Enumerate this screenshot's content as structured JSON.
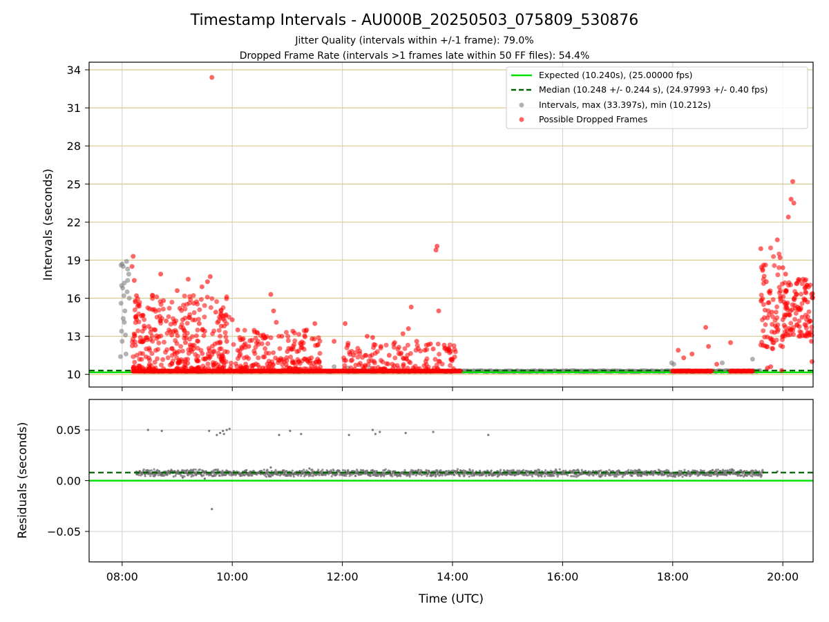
{
  "chart_data": [
    {
      "type": "scatter",
      "title": "Timestamp Intervals - AU000B_20250503_075809_530876",
      "subtitle_lines": [
        "Jitter Quality (intervals within +/-1 frame): 79.0%",
        "Dropped Frame Rate (intervals >1 frames late within 50 FF files): 54.4%"
      ],
      "xlabel": "",
      "ylabel": "Intervals (seconds)",
      "xlim_hours": [
        7.4,
        20.55
      ],
      "ylim": [
        9.0,
        34.6
      ],
      "yticks": [
        10,
        13,
        16,
        19,
        22,
        25,
        28,
        31,
        34
      ],
      "ytick_labels": [
        "10",
        "13",
        "16",
        "19",
        "22",
        "25",
        "28",
        "31",
        "34"
      ],
      "xticks_hours": [
        8,
        10,
        12,
        14,
        16,
        18,
        20
      ],
      "grid": true,
      "legend_position": "upper-right",
      "reference_lines": [
        {
          "name": "Expected (10.240s), (25.00000 fps)",
          "y": 10.24,
          "color": "#00e000",
          "style": "solid"
        },
        {
          "name": "Median (10.248 +/- 0.244 s), (24.97993 +/- 0.40 fps)",
          "y": 10.248,
          "color": "#006400",
          "style": "dashed"
        }
      ],
      "series": [
        {
          "name": "Intervals, max (33.397s), min (10.212s)",
          "color": "#808080",
          "points": [
            [
              7.98,
              18.6
            ],
            [
              8.0,
              18.7
            ],
            [
              8.02,
              18.5
            ],
            [
              8.04,
              17.2
            ],
            [
              7.99,
              17.0
            ],
            [
              8.01,
              16.8
            ],
            [
              8.03,
              16.2
            ],
            [
              7.98,
              15.6
            ],
            [
              8.05,
              15.0
            ],
            [
              8.02,
              14.4
            ],
            [
              8.04,
              14.1
            ],
            [
              7.99,
              13.4
            ],
            [
              8.06,
              13.1
            ],
            [
              8.0,
              12.6
            ],
            [
              8.08,
              18.9
            ],
            [
              8.1,
              18.3
            ],
            [
              8.12,
              17.9
            ],
            [
              8.1,
              17.4
            ],
            [
              8.09,
              16.5
            ],
            [
              8.13,
              16.0
            ],
            [
              7.97,
              11.4
            ],
            [
              8.07,
              11.6
            ],
            [
              11.85,
              10.6
            ],
            [
              12.1,
              10.5
            ],
            [
              12.5,
              10.5
            ],
            [
              17.98,
              10.9
            ],
            [
              18.02,
              10.8
            ],
            [
              18.9,
              10.9
            ],
            [
              19.45,
              11.2
            ],
            [
              19.7,
              10.3
            ]
          ],
          "baseline_band": {
            "x_start": 8.3,
            "x_end": 19.6,
            "y": 10.25
          }
        },
        {
          "name": "Possible Dropped Frames",
          "color": "#ff0000",
          "points": [
            [
              9.63,
              33.4
            ],
            [
              8.2,
              19.3
            ],
            [
              8.18,
              18.5
            ],
            [
              8.22,
              17.4
            ],
            [
              8.26,
              16.2
            ],
            [
              8.3,
              15.5
            ],
            [
              8.35,
              14.6
            ],
            [
              8.4,
              13.8
            ],
            [
              8.45,
              12.9
            ],
            [
              8.55,
              15.1
            ],
            [
              8.6,
              13.5
            ],
            [
              8.7,
              17.9
            ],
            [
              8.75,
              15.8
            ],
            [
              8.8,
              14.2
            ],
            [
              8.9,
              13.1
            ],
            [
              9.0,
              16.6
            ],
            [
              9.05,
              15.2
            ],
            [
              9.1,
              14.3
            ],
            [
              9.15,
              12.5
            ],
            [
              9.2,
              17.5
            ],
            [
              9.3,
              15.6
            ],
            [
              9.4,
              14.0
            ],
            [
              9.45,
              16.9
            ],
            [
              9.5,
              13.4
            ],
            [
              9.55,
              17.3
            ],
            [
              9.6,
              17.7
            ],
            [
              9.7,
              14.9
            ],
            [
              9.8,
              13.8
            ],
            [
              9.9,
              12.6
            ],
            [
              10.0,
              14.3
            ],
            [
              10.1,
              13.5
            ],
            [
              10.2,
              12.8
            ],
            [
              10.3,
              12.2
            ],
            [
              10.45,
              13.3
            ],
            [
              10.6,
              12.9
            ],
            [
              10.7,
              16.3
            ],
            [
              10.75,
              15.0
            ],
            [
              10.8,
              14.1
            ],
            [
              10.9,
              13.0
            ],
            [
              11.0,
              11.8
            ],
            [
              11.1,
              13.4
            ],
            [
              11.25,
              12.1
            ],
            [
              11.35,
              13.5
            ],
            [
              11.45,
              12.8
            ],
            [
              11.5,
              14.0
            ],
            [
              11.55,
              11.2
            ],
            [
              11.85,
              12.6
            ],
            [
              12.05,
              14.0
            ],
            [
              12.1,
              12.3
            ],
            [
              12.2,
              11.5
            ],
            [
              12.45,
              13.0
            ],
            [
              12.55,
              12.9
            ],
            [
              12.7,
              12.2
            ],
            [
              12.85,
              11.5
            ],
            [
              12.95,
              12.5
            ],
            [
              13.1,
              13.2
            ],
            [
              13.2,
              13.6
            ],
            [
              13.25,
              15.3
            ],
            [
              13.35,
              12.6
            ],
            [
              13.5,
              11.9
            ],
            [
              13.6,
              12.4
            ],
            [
              13.65,
              12.0
            ],
            [
              13.7,
              19.8
            ],
            [
              13.72,
              20.1
            ],
            [
              13.75,
              15.0
            ],
            [
              13.85,
              12.3
            ],
            [
              13.95,
              11.7
            ],
            [
              14.0,
              11.2
            ],
            [
              18.1,
              11.9
            ],
            [
              18.2,
              11.3
            ],
            [
              18.35,
              11.6
            ],
            [
              18.6,
              13.7
            ],
            [
              18.65,
              12.2
            ],
            [
              18.8,
              10.8
            ],
            [
              19.05,
              12.5
            ],
            [
              19.6,
              19.9
            ],
            [
              19.65,
              18.6
            ],
            [
              19.7,
              17.3
            ],
            [
              19.75,
              16.5
            ],
            [
              19.8,
              14.9
            ],
            [
              19.85,
              13.3
            ],
            [
              19.9,
              20.6
            ],
            [
              19.95,
              19.2
            ],
            [
              20.0,
              18.4
            ],
            [
              20.05,
              17.9
            ],
            [
              20.1,
              22.4
            ],
            [
              20.15,
              23.8
            ],
            [
              20.18,
              25.2
            ],
            [
              20.2,
              23.5
            ],
            [
              20.25,
              16.3
            ],
            [
              20.3,
              15.1
            ],
            [
              20.35,
              14.5
            ],
            [
              20.4,
              16.8
            ],
            [
              20.45,
              15.7
            ],
            [
              20.5,
              14.2
            ],
            [
              20.52,
              12.6
            ],
            [
              20.53,
              11.0
            ],
            [
              19.72,
              10.5
            ],
            [
              19.78,
              10.6
            ],
            [
              19.98,
              10.3
            ]
          ],
          "baseline_band": {
            "x_start": 8.2,
            "x_end": 14.15,
            "y": 10.25
          },
          "extra_bands": [
            {
              "x_start": 18.0,
              "x_end": 18.7,
              "y": 10.25
            },
            {
              "x_start": 19.05,
              "x_end": 19.45,
              "y": 10.25
            }
          ]
        }
      ]
    },
    {
      "type": "scatter",
      "title": "",
      "xlabel": "Time (UTC)",
      "ylabel": "Residuals (seconds)",
      "xlim_hours": [
        7.4,
        20.55
      ],
      "ylim": [
        -0.08,
        0.08
      ],
      "yticks": [
        -0.05,
        0.0,
        0.05
      ],
      "ytick_labels": [
        "−0.05",
        "0.00",
        "0.05"
      ],
      "xticks_hours": [
        8,
        10,
        12,
        14,
        16,
        18,
        20
      ],
      "xtick_labels": [
        "08:00",
        "10:00",
        "12:00",
        "14:00",
        "16:00",
        "18:00",
        "20:00"
      ],
      "grid": true,
      "reference_lines": [
        {
          "y": 0.0,
          "color": "#00e000",
          "style": "solid"
        },
        {
          "y": 0.008,
          "color": "#006400",
          "style": "dashed"
        }
      ],
      "series": [
        {
          "color": "#6e6e6e",
          "band": {
            "x_start": 8.25,
            "x_end": 19.65,
            "y_center": 0.0075,
            "spread": 0.004
          },
          "points": [
            [
              8.47,
              0.05
            ],
            [
              8.72,
              0.049
            ],
            [
              9.58,
              0.049
            ],
            [
              9.72,
              0.045
            ],
            [
              9.78,
              0.047
            ],
            [
              9.83,
              0.049
            ],
            [
              9.9,
              0.05
            ],
            [
              9.95,
              0.051
            ],
            [
              9.85,
              0.046
            ],
            [
              10.85,
              0.045
            ],
            [
              11.05,
              0.049
            ],
            [
              11.25,
              0.046
            ],
            [
              12.12,
              0.045
            ],
            [
              12.55,
              0.05
            ],
            [
              12.6,
              0.046
            ],
            [
              12.68,
              0.048
            ],
            [
              13.15,
              0.047
            ],
            [
              13.65,
              0.048
            ],
            [
              14.65,
              0.045
            ],
            [
              9.63,
              -0.028
            ],
            [
              9.1,
              0.003
            ],
            [
              9.5,
              0.002
            ],
            [
              10.7,
              0.013
            ],
            [
              11.4,
              0.012
            ],
            [
              19.9,
              0.009
            ]
          ]
        }
      ]
    }
  ]
}
